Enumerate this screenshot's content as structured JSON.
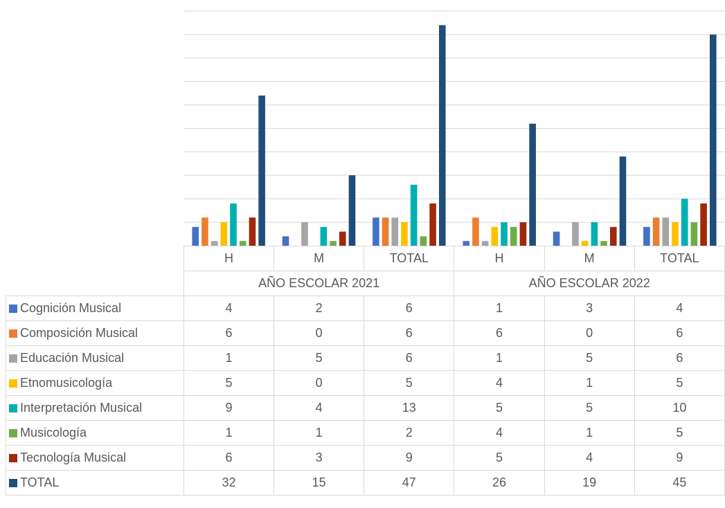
{
  "chart_data": {
    "type": "bar",
    "groups": [
      "AÑO ESCOLAR 2021",
      "AÑO ESCOLAR 2022"
    ],
    "subcategories": [
      "H",
      "M",
      "TOTAL"
    ],
    "categories": [
      "H",
      "M",
      "TOTAL",
      "H",
      "M",
      "TOTAL"
    ],
    "ylim": [
      0,
      50
    ],
    "grid": true,
    "legend": "data table",
    "series": [
      {
        "name": "Cognición Musical",
        "color": "#4472c4",
        "values": [
          4,
          2,
          6,
          1,
          3,
          4
        ]
      },
      {
        "name": "Composición Musical",
        "color": "#ed7d31",
        "values": [
          6,
          0,
          6,
          6,
          0,
          6
        ]
      },
      {
        "name": "Educación Musical",
        "color": "#a5a5a5",
        "values": [
          1,
          5,
          6,
          1,
          5,
          6
        ]
      },
      {
        "name": "Etnomusicología",
        "color": "#ffc000",
        "values": [
          5,
          0,
          5,
          4,
          1,
          5
        ]
      },
      {
        "name": "Interpretación Musical",
        "color": "#00b0b0",
        "values": [
          9,
          4,
          13,
          5,
          5,
          10
        ]
      },
      {
        "name": "Musicología",
        "color": "#70ad47",
        "values": [
          1,
          1,
          2,
          4,
          1,
          5
        ]
      },
      {
        "name": "Tecnología Musical",
        "color": "#9e2a0b",
        "values": [
          6,
          3,
          9,
          5,
          4,
          9
        ]
      },
      {
        "name": "TOTAL",
        "color": "#1f4e79",
        "values": [
          32,
          15,
          47,
          26,
          19,
          45
        ]
      }
    ]
  }
}
